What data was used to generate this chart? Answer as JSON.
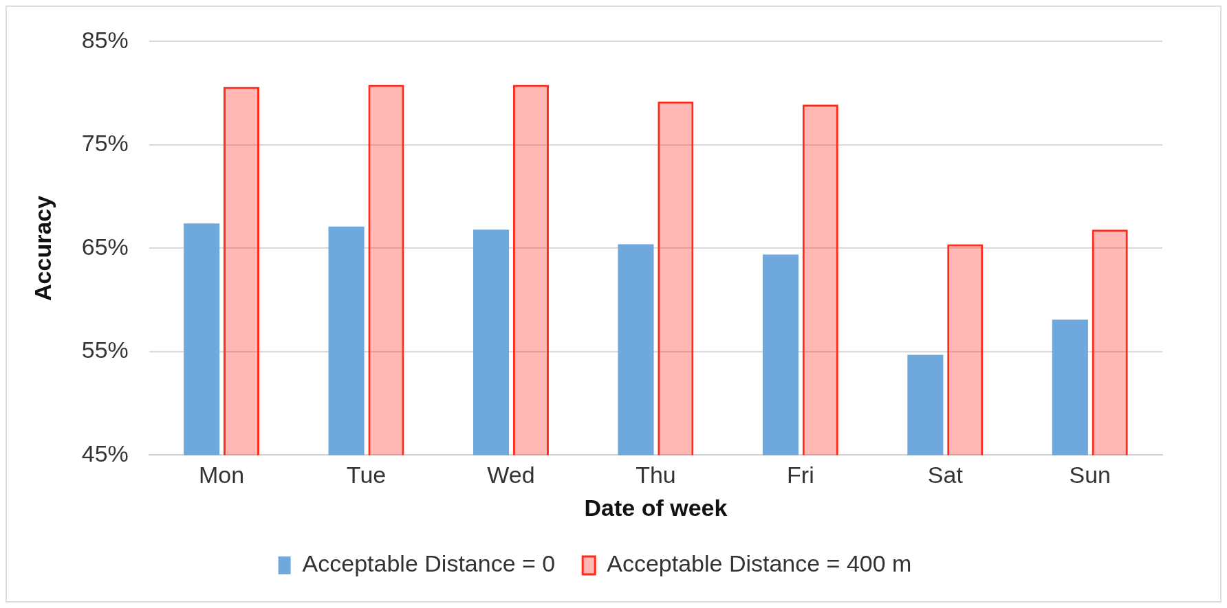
{
  "chart_data": {
    "type": "bar",
    "xlabel": "Date of week",
    "ylabel": "Accuracy",
    "categories": [
      "Mon",
      "Tue",
      "Wed",
      "Thu",
      "Fri",
      "Sat",
      "Sun"
    ],
    "series": [
      {
        "name": "Acceptable Distance = 0",
        "color": "#6fa8dc",
        "values": [
          67.4,
          67.1,
          66.8,
          65.4,
          64.4,
          54.7,
          58.1
        ]
      },
      {
        "name": "Acceptable Distance = 400 m",
        "color": "#ff2a1a",
        "values": [
          80.6,
          80.8,
          80.8,
          79.2,
          78.9,
          65.4,
          66.8
        ]
      }
    ],
    "ylim": [
      45,
      85
    ],
    "yticks": [
      {
        "value": 45,
        "label": "45%"
      },
      {
        "value": 55,
        "label": "55%"
      },
      {
        "value": 65,
        "label": "65%"
      },
      {
        "value": 75,
        "label": "75%"
      },
      {
        "value": 85,
        "label": "85%"
      }
    ],
    "grid": "y",
    "legend": "bottom"
  }
}
